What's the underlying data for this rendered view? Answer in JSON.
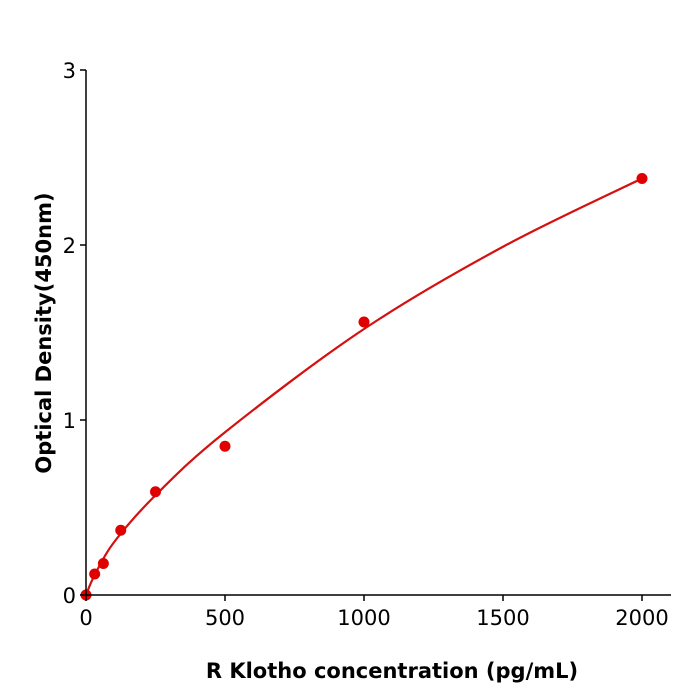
{
  "chart_data": {
    "type": "scatter",
    "title": "",
    "xlabel": "R  Klotho concentration (pg/mL)",
    "ylabel": "Optical Density(450nm)",
    "xlim": [
      0,
      2100
    ],
    "ylim": [
      0,
      3
    ],
    "xticks": [
      0,
      500,
      1000,
      1500,
      2000
    ],
    "yticks": [
      0,
      1,
      2,
      3
    ],
    "grid": false,
    "color": "#e00000",
    "curve_color": "#d41010",
    "points": [
      {
        "x": 0,
        "y": 0.0
      },
      {
        "x": 31.25,
        "y": 0.12
      },
      {
        "x": 62.5,
        "y": 0.18
      },
      {
        "x": 125,
        "y": 0.37
      },
      {
        "x": 250,
        "y": 0.59
      },
      {
        "x": 500,
        "y": 0.85
      },
      {
        "x": 1000,
        "y": 1.56
      },
      {
        "x": 2000,
        "y": 2.38
      }
    ],
    "fit_curve": [
      {
        "x": 0,
        "y": 0.0
      },
      {
        "x": 30,
        "y": 0.11
      },
      {
        "x": 100,
        "y": 0.3
      },
      {
        "x": 250,
        "y": 0.57
      },
      {
        "x": 500,
        "y": 0.93
      },
      {
        "x": 1000,
        "y": 1.52
      },
      {
        "x": 1500,
        "y": 1.99
      },
      {
        "x": 2000,
        "y": 2.38
      }
    ]
  }
}
